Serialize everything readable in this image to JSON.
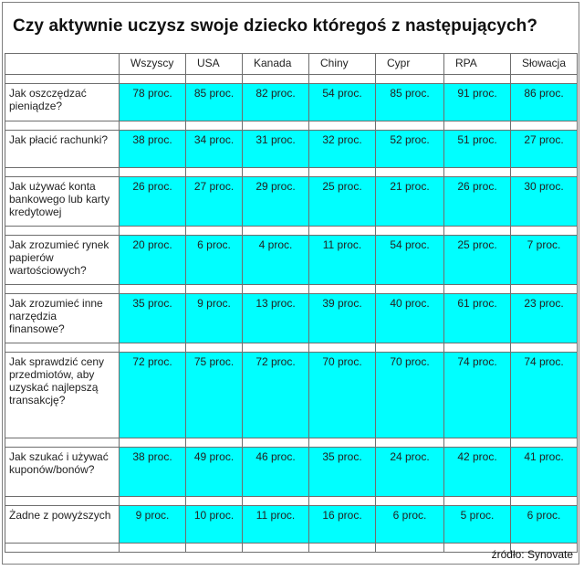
{
  "title": "Czy aktywnie uczysz swoje dziecko któregoś z następujących?",
  "colors": {
    "value_cell": "#00ffff",
    "border": "#6e6e6e"
  },
  "columns": [
    "Wszyscy",
    "USA",
    "Kanada",
    "Chiny",
    "Cypr",
    "RPA",
    "Słowacja"
  ],
  "rows": [
    {
      "question": "Jak oszczędzać pieniądze?",
      "values": [
        "78 proc.",
        "85 proc.",
        "82 proc.",
        "54 proc.",
        "85 proc.",
        "91 proc.",
        "86 proc."
      ]
    },
    {
      "question": "Jak płacić rachunki?",
      "values": [
        "38 proc.",
        "34 proc.",
        "31 proc.",
        "32 proc.",
        "52 proc.",
        "51 proc.",
        "27 proc."
      ]
    },
    {
      "question": "Jak używać konta bankowego lub karty kredytowej",
      "values": [
        "26 proc.",
        "27 proc.",
        "29 proc.",
        "25 proc.",
        "21 proc.",
        "26 proc.",
        "30 proc."
      ]
    },
    {
      "question": "Jak zrozumieć rynek papierów wartościowych?",
      "values": [
        "20 proc.",
        "6 proc.",
        "4 proc.",
        "11 proc.",
        "54 proc.",
        "25 proc.",
        "7 proc."
      ]
    },
    {
      "question": "Jak zrozumieć inne narzędzia finansowe?",
      "values": [
        "35 proc.",
        "9 proc.",
        "13 proc.",
        "39 proc.",
        "40 proc.",
        "61 proc.",
        "23 proc."
      ]
    },
    {
      "question": "Jak sprawdzić ceny przedmiotów, aby uzyskać najlepszą transakcję?",
      "values": [
        "72 proc.",
        "75 proc.",
        "72 proc.",
        "70 proc.",
        "70 proc.",
        "74 proc.",
        "74 proc."
      ]
    },
    {
      "question": "Jak szukać i używać kuponów/bonów?",
      "values": [
        "38 proc.",
        "49 proc.",
        "46 proc.",
        "35 proc.",
        "24 proc.",
        "42 proc.",
        "41 proc."
      ]
    },
    {
      "question": "Żadne z powyższych",
      "values": [
        "9 proc.",
        "10 proc.",
        "11 proc.",
        "16 proc.",
        "6 proc.",
        "5 proc.",
        "6 proc."
      ]
    }
  ],
  "source": "źródło: Synovate"
}
